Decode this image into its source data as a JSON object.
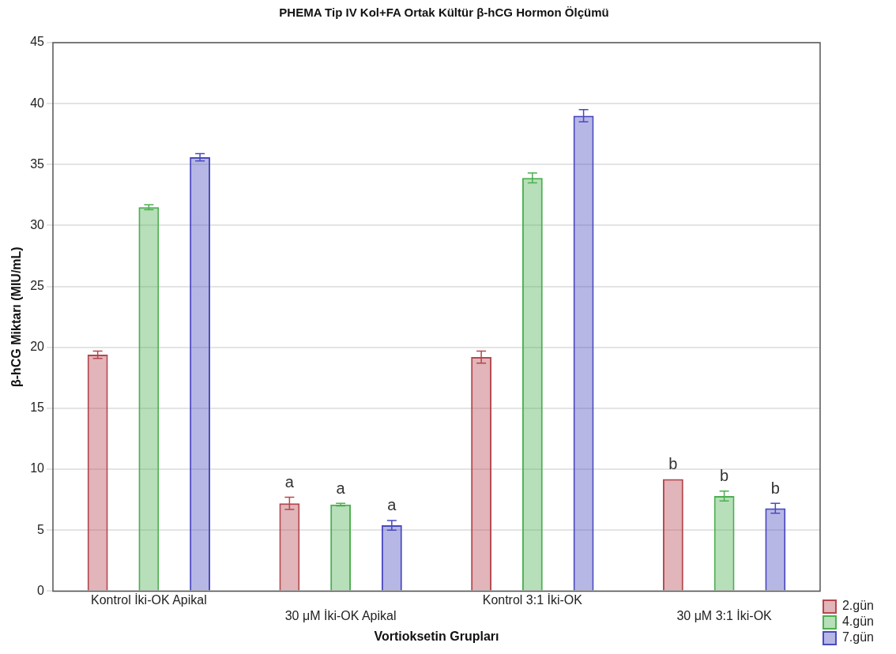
{
  "chart_data": {
    "type": "bar",
    "title": "PHEMA Tip IV Kol+FA Ortak Kültür β-hCG Hormon Ölçümü",
    "xlabel": "Vortioksetin Grupları",
    "ylabel": "β-hCG Miktarı (MIU/mL)",
    "categories": [
      "Kontrol İki-OK Apikal",
      "30 μM İki-OK Apikal",
      "Kontrol 3:1 İki-OK",
      "30 μM 3:1 İki-OK"
    ],
    "series": [
      {
        "name": "2.gün",
        "color": "#b5474f",
        "values": [
          19.4,
          7.2,
          19.2,
          9.2
        ],
        "errors": [
          0.3,
          0.5,
          0.5,
          null
        ],
        "value_labels": [
          null,
          "a",
          null,
          "b"
        ]
      },
      {
        "name": "4.gün",
        "color": "#4caf50",
        "values": [
          31.5,
          7.1,
          33.9,
          7.8
        ],
        "errors": [
          0.2,
          0.1,
          0.4,
          0.4
        ],
        "value_labels": [
          null,
          "a",
          null,
          "b"
        ]
      },
      {
        "name": "7.gün",
        "color": "#4a4ac0",
        "values": [
          35.6,
          5.4,
          39.0,
          6.8
        ],
        "errors": [
          0.3,
          0.4,
          0.5,
          0.4
        ],
        "value_labels": [
          null,
          "a",
          null,
          "b"
        ]
      }
    ],
    "ylim": [
      0,
      45
    ],
    "yticks": [
      0,
      5,
      10,
      15,
      20,
      25,
      30,
      35,
      40,
      45
    ],
    "grid": "y",
    "legend": "bottom right"
  }
}
